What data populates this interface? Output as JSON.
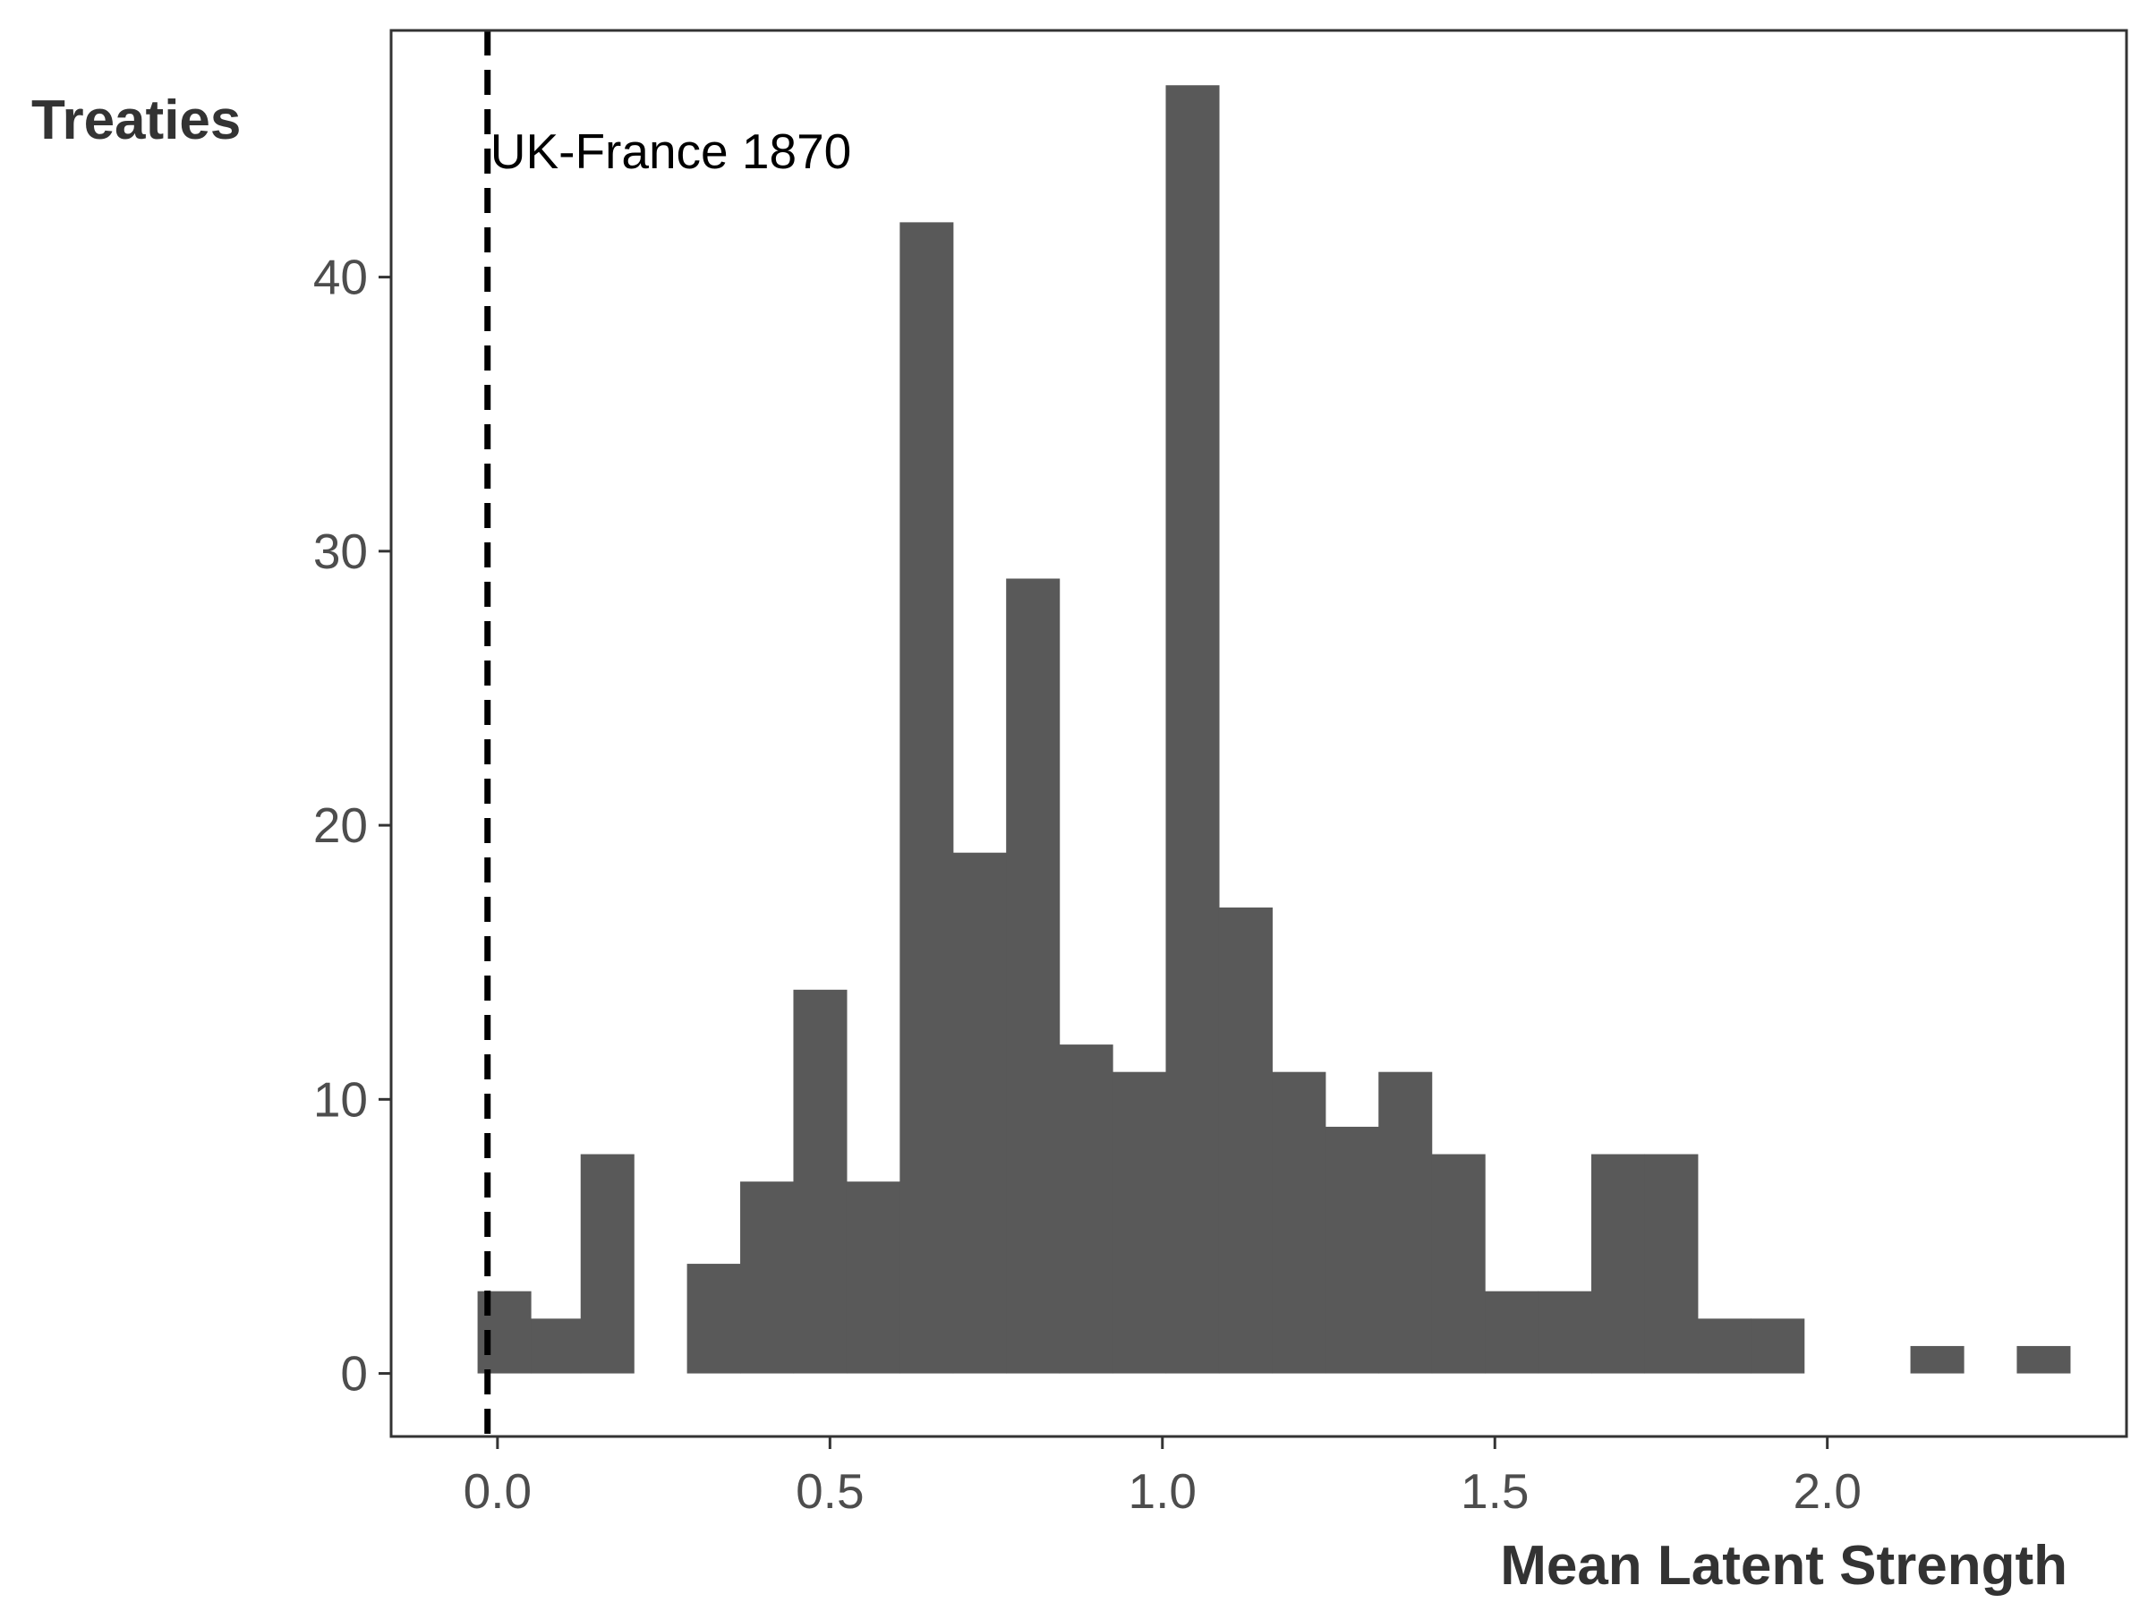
{
  "chart_data": {
    "type": "bar",
    "subtype": "histogram",
    "ylabel": "Treaties",
    "xlabel": "Mean Latent Strength",
    "bar_color": "#595959",
    "bins": [
      {
        "x0": -0.03,
        "x1": 0.05,
        "count": 3
      },
      {
        "x0": 0.05,
        "x1": 0.125,
        "count": 2
      },
      {
        "x0": 0.125,
        "x1": 0.205,
        "count": 8
      },
      {
        "x0": 0.205,
        "x1": 0.285,
        "count": 0
      },
      {
        "x0": 0.285,
        "x1": 0.365,
        "count": 4
      },
      {
        "x0": 0.365,
        "x1": 0.445,
        "count": 7
      },
      {
        "x0": 0.445,
        "x1": 0.525,
        "count": 14
      },
      {
        "x0": 0.525,
        "x1": 0.605,
        "count": 7
      },
      {
        "x0": 0.605,
        "x1": 0.685,
        "count": 42
      },
      {
        "x0": 0.685,
        "x1": 0.765,
        "count": 19
      },
      {
        "x0": 0.765,
        "x1": 0.845,
        "count": 29
      },
      {
        "x0": 0.845,
        "x1": 0.925,
        "count": 12
      },
      {
        "x0": 0.925,
        "x1": 1.005,
        "count": 11
      },
      {
        "x0": 1.005,
        "x1": 1.085,
        "count": 47
      },
      {
        "x0": 1.085,
        "x1": 1.165,
        "count": 17
      },
      {
        "x0": 1.165,
        "x1": 1.245,
        "count": 11
      },
      {
        "x0": 1.245,
        "x1": 1.325,
        "count": 9
      },
      {
        "x0": 1.325,
        "x1": 1.405,
        "count": 11
      },
      {
        "x0": 1.405,
        "x1": 1.485,
        "count": 8
      },
      {
        "x0": 1.485,
        "x1": 1.565,
        "count": 3
      },
      {
        "x0": 1.565,
        "x1": 1.645,
        "count": 3
      },
      {
        "x0": 1.645,
        "x1": 1.725,
        "count": 8
      },
      {
        "x0": 1.725,
        "x1": 1.805,
        "count": 8
      },
      {
        "x0": 1.805,
        "x1": 1.885,
        "count": 2
      },
      {
        "x0": 1.885,
        "x1": 1.965,
        "count": 2
      },
      {
        "x0": 1.965,
        "x1": 2.045,
        "count": 0
      },
      {
        "x0": 2.045,
        "x1": 2.125,
        "count": 0
      },
      {
        "x0": 2.125,
        "x1": 2.205,
        "count": 1
      },
      {
        "x0": 2.205,
        "x1": 2.285,
        "count": 0
      },
      {
        "x0": 2.285,
        "x1": 2.365,
        "count": 1
      }
    ],
    "xlim": [
      -0.16,
      2.45
    ],
    "ylim": [
      -2.3,
      49
    ],
    "xticks": [
      {
        "value": 0.0,
        "label": "0.0"
      },
      {
        "value": 0.5,
        "label": "0.5"
      },
      {
        "value": 1.0,
        "label": "1.0"
      },
      {
        "value": 1.5,
        "label": "1.5"
      },
      {
        "value": 2.0,
        "label": "2.0"
      }
    ],
    "yticks": [
      {
        "value": 0,
        "label": "0"
      },
      {
        "value": 10,
        "label": "10"
      },
      {
        "value": 20,
        "label": "20"
      },
      {
        "value": 30,
        "label": "30"
      },
      {
        "value": 40,
        "label": "40"
      }
    ],
    "reference_line": {
      "x": -0.015,
      "style": "dashed",
      "label": "UK-France 1870"
    },
    "grid": false
  }
}
